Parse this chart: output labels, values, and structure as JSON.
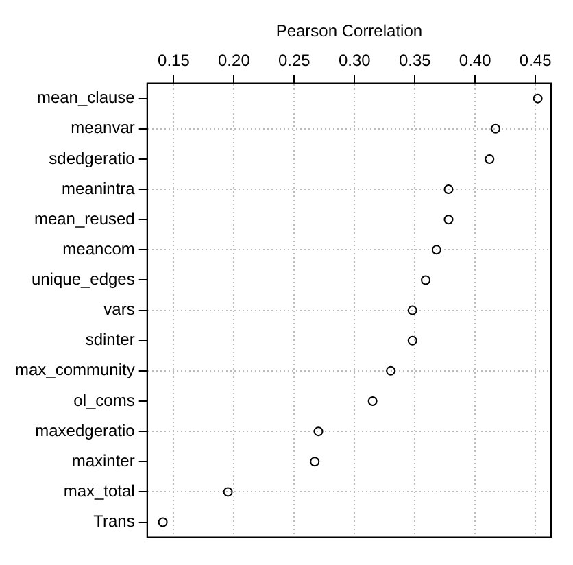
{
  "chart_data": {
    "type": "scatter",
    "orientation": "horizontal",
    "xlabel": "Pearson Correlation",
    "categories": [
      "mean_clause",
      "meanvar",
      "sdedgeratio",
      "meanintra",
      "mean_reused",
      "meancom",
      "unique_edges",
      "vars",
      "sdinter",
      "max_community",
      "ol_coms",
      "maxedgeratio",
      "maxinter",
      "max_total",
      "Trans"
    ],
    "values": [
      0.452,
      0.417,
      0.412,
      0.378,
      0.378,
      0.368,
      0.359,
      0.348,
      0.348,
      0.33,
      0.315,
      0.27,
      0.267,
      0.195,
      0.141
    ],
    "color": "#000000",
    "marker": "circle",
    "grid": true,
    "xlim": [
      0.128,
      0.463
    ],
    "xticks": [
      0.15,
      {
        "value": 0.2,
        "label": "0.20"
      },
      0.25,
      {
        "value": 0.3,
        "label": "0.30"
      },
      0.35,
      {
        "value": 0.4,
        "label": "0.40"
      },
      0.45
    ]
  }
}
